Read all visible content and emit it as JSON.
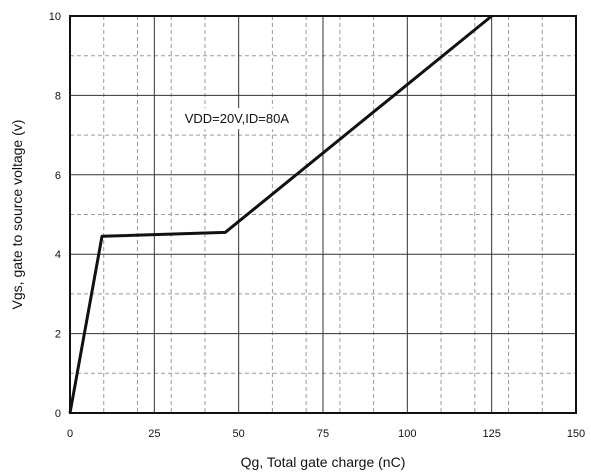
{
  "chart_data": {
    "type": "line",
    "xlabel": "Qg, Total gate charge (nC)",
    "ylabel": "Vgs, gate to source voltage (v)",
    "xlim": [
      0,
      150
    ],
    "ylim": [
      0,
      10
    ],
    "x_ticks": [
      "0",
      "25",
      "50",
      "75",
      "100",
      "125",
      "150"
    ],
    "y_ticks": [
      "0",
      "2",
      "4",
      "6",
      "8",
      "10"
    ],
    "grid": true,
    "annotation": "VDD=20V,ID=80A",
    "series": [
      {
        "x": [
          0,
          9.5,
          46,
          125
        ],
        "y": [
          0,
          4.45,
          4.55,
          10
        ],
        "color": "#111111"
      }
    ]
  }
}
